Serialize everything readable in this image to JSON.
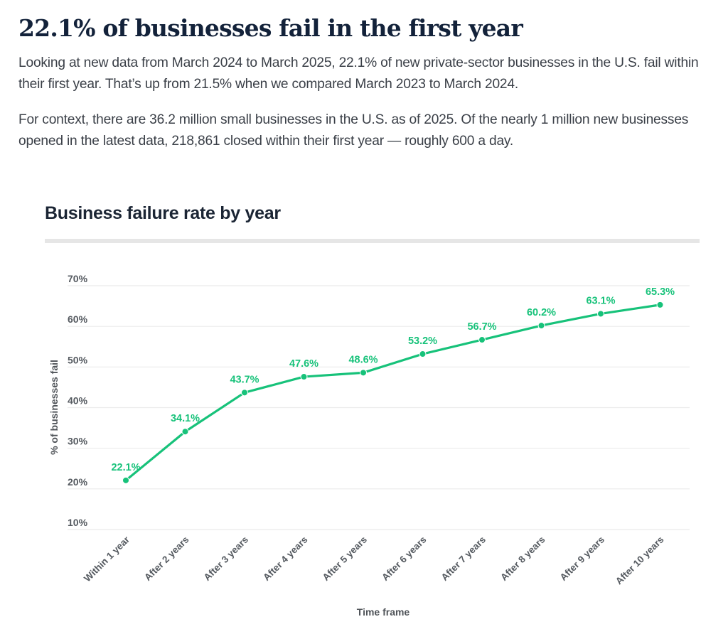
{
  "article": {
    "headline": "22.1% of businesses fail in the first year",
    "paragraph_1": "Looking at new data from March 2024 to March 2025, 22.1% of new private-sector businesses in the U.S. fail within their first year. That’s up from 21.5% when we compared March 2023 to March 2024.",
    "paragraph_2": "For context, there are 36.2 million small businesses in the U.S. as of 2025. Of the nearly 1 million new businesses opened in the latest data, 218,861 closed within their first year — roughly 600 a day."
  },
  "colors": {
    "series": "#17c27a",
    "gridline": "#ebebeb",
    "headline": "#13223a"
  },
  "chart_data": {
    "type": "line",
    "title": "Business failure rate by year",
    "xlabel": "Time frame",
    "ylabel": "% of businesses fail",
    "categories": [
      "Within 1 year",
      "After 2 years",
      "After 3 years",
      "After 4 years",
      "After 5 years",
      "After 6 years",
      "After 7 years",
      "After 8 years",
      "After 9 years",
      "After 10 years"
    ],
    "series": [
      {
        "name": "Business failure rate",
        "values": [
          22.1,
          34.1,
          43.7,
          47.6,
          48.6,
          53.2,
          56.7,
          60.2,
          63.1,
          65.3
        ],
        "labels": [
          "22.1%",
          "34.1%",
          "43.7%",
          "47.6%",
          "48.6%",
          "53.2%",
          "56.7%",
          "60.2%",
          "63.1%",
          "65.3%"
        ]
      }
    ],
    "yticks": [
      10,
      20,
      30,
      40,
      50,
      60,
      70
    ],
    "ytick_labels": [
      "10%",
      "20%",
      "30%",
      "40%",
      "50%",
      "60%",
      "70%"
    ],
    "ylim": [
      10,
      70
    ],
    "grid": true,
    "legend": "none"
  }
}
